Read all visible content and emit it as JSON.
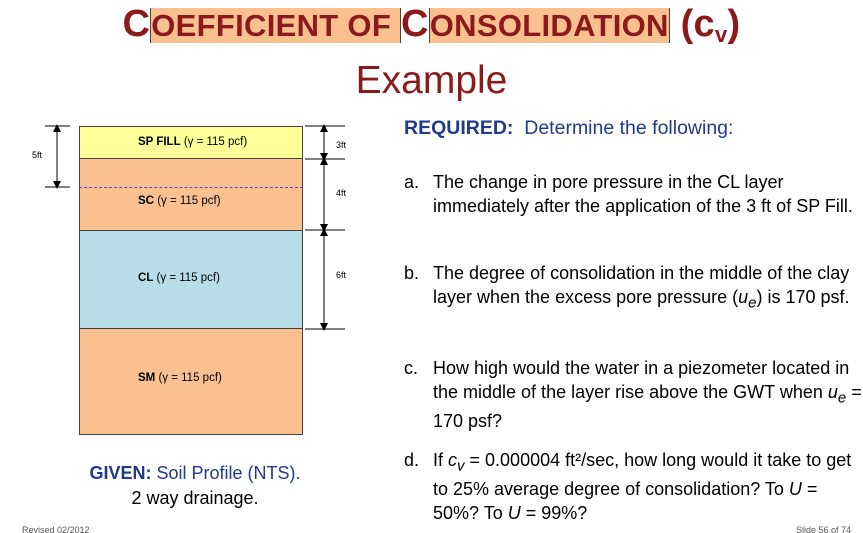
{
  "title": {
    "big_c1": "C",
    "small1": "OEFFICIENT OF ",
    "big_c2": "C",
    "small2": "ONSOLIDATION",
    "paren_open": " (c",
    "sub": "v",
    "paren_close": ")",
    "subtitle": "Example"
  },
  "profile": {
    "layers": [
      {
        "name": "SP FILL",
        "gamma": "(γ = 115 pcf)"
      },
      {
        "name": "SC",
        "gamma": "(γ = 115 pcf)"
      },
      {
        "name": "CL",
        "gamma": "(γ = 115 pcf)"
      },
      {
        "name": "SM",
        "gamma": "(γ = 115 pcf)"
      }
    ],
    "dims": {
      "left": "5ft",
      "sp": "3ft",
      "sc": "4ft",
      "cl": "6ft"
    },
    "colors": {
      "sp_fill": "#ffff99",
      "sc": "#fac090",
      "cl": "#b7dee8",
      "sm": "#fac090",
      "gwt_line": "#4a4ad8"
    }
  },
  "given": {
    "label": "GIVEN:",
    "text": " Soil Profile (NTS).",
    "line2": "2 way drainage."
  },
  "required": {
    "label": "REQUIRED:",
    "text": "  Determine the following:"
  },
  "questions": [
    {
      "letter": "a.",
      "text": "The change in pore pressure in the CL layer immediately after the application of the 3 ft of SP Fill."
    },
    {
      "letter": "b.",
      "text_pre": "The degree of consolidation in the middle of the clay layer when the excess pore pressure (",
      "var": "u",
      "var_sub": "e",
      "text_post": ") is 170 psf."
    },
    {
      "letter": "c.",
      "text_pre": "How high would the water in a piezometer located in the middle of the layer rise above the GWT when ",
      "var": "u",
      "var_sub": "e",
      "text_post": " = 170 psf?"
    },
    {
      "letter": "d.",
      "text_pre": "If ",
      "var": "c",
      "var_sub": "v",
      "text_mid": " = 0.000004 ft²/sec, how long would it take to get to 25% average degree of consolidation?  To ",
      "u1": "U",
      "text_mid2": " = 50%? To ",
      "u2": "U",
      "text_post": " = 99%?"
    }
  ],
  "footer": {
    "left": "Revised 02/2012",
    "right": "Slide 56 of 74"
  },
  "accent_colors": {
    "title": "#8b1a1a",
    "blue_text": "#1f3b8a"
  }
}
